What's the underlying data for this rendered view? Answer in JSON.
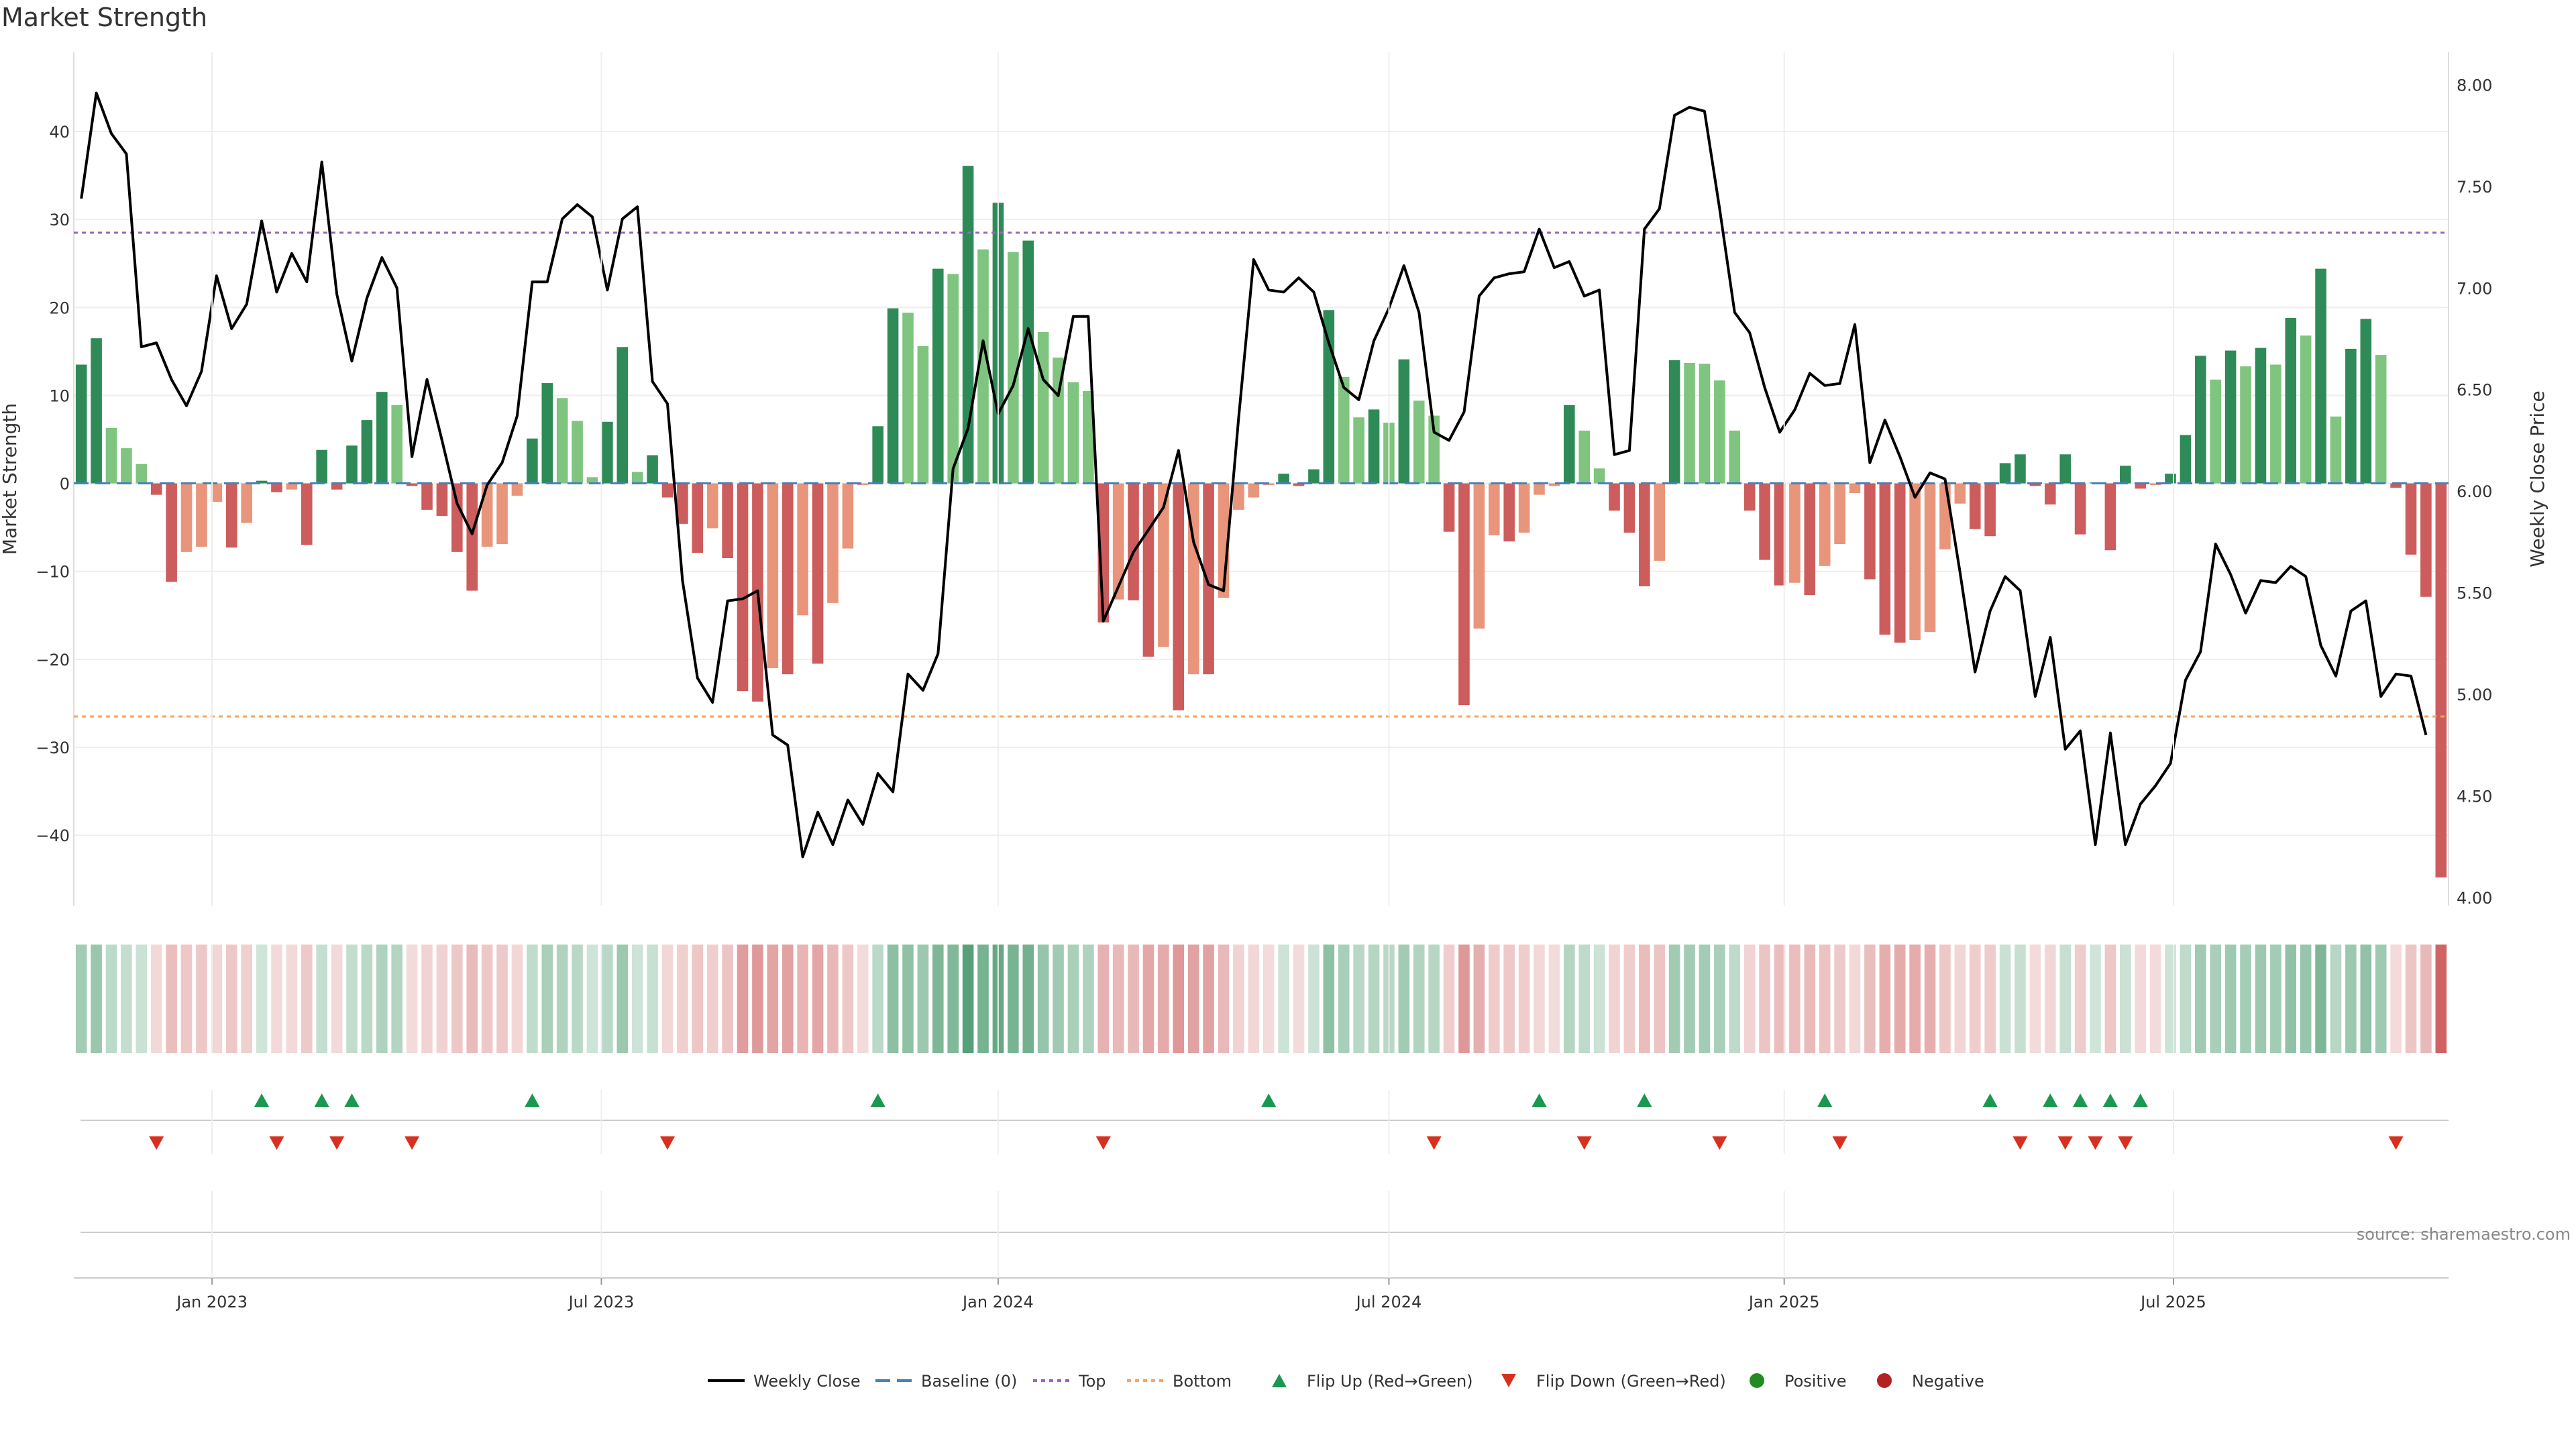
{
  "chart_data": {
    "type": "bar",
    "title": "Market Strength",
    "ylabel": "Market Strength",
    "y2label": "Weekly Close Price",
    "ylim": [
      -48,
      49
    ],
    "y2lim": [
      3.96,
      8.16
    ],
    "yticks": [
      40,
      30,
      20,
      10,
      0,
      -10,
      -20,
      -30,
      -40
    ],
    "y2ticks": [
      "8.00",
      "7.50",
      "7.00",
      "6.50",
      "6.00",
      "5.50",
      "5.00",
      "4.50",
      "4.00"
    ],
    "xticks": [
      {
        "label": "Jan 2023",
        "x": 8.7
      },
      {
        "label": "Jul 2023",
        "x": 34.6
      },
      {
        "label": "Jan 2024",
        "x": 61.0
      },
      {
        "label": "Jul 2024",
        "x": 87.0
      },
      {
        "label": "Jan 2025",
        "x": 113.3
      },
      {
        "label": "Jul 2025",
        "x": 139.2
      }
    ],
    "top_line": 28.5,
    "bottom_line": -26.5,
    "strength": [
      13.5,
      16.5,
      6.3,
      4.0,
      2.2,
      -1.3,
      -11.2,
      -7.8,
      -7.2,
      -2.1,
      -7.3,
      -4.5,
      0.3,
      -1.0,
      -0.7,
      -7.0,
      3.8,
      -0.7,
      4.3,
      7.2,
      10.4,
      8.9,
      -0.3,
      -3.0,
      -3.7,
      -7.8,
      -12.2,
      -7.2,
      -6.9,
      -1.4,
      5.1,
      11.4,
      9.7,
      7.1,
      0.7,
      7.0,
      15.5,
      1.3,
      3.2,
      -1.6,
      -4.6,
      -7.9,
      -5.1,
      -8.5,
      -23.6,
      -24.8,
      -21.0,
      -21.7,
      -15.0,
      -20.5,
      -13.6,
      -7.4,
      -0.2,
      6.5,
      19.9,
      19.4,
      15.6,
      24.4,
      23.8,
      36.1,
      26.6,
      31.9,
      26.3,
      27.6,
      17.2,
      14.3,
      11.5,
      10.5,
      -15.8,
      -13.2,
      -13.3,
      -19.7,
      -18.6,
      -25.8,
      -21.7,
      -21.7,
      -13.0,
      -3.0,
      -1.6,
      -0.2,
      1.1,
      -0.3,
      1.6,
      19.7,
      12.1,
      7.5,
      8.4,
      6.9,
      14.1,
      9.4,
      7.7,
      -5.5,
      -25.2,
      -16.5,
      -5.9,
      -6.6,
      -5.6,
      -1.3,
      -0.3,
      8.9,
      6.0,
      1.7,
      -3.1,
      -5.6,
      -11.7,
      -8.8,
      14.0,
      13.7,
      13.6,
      11.7,
      6.0,
      -3.1,
      -8.7,
      -11.6,
      -11.3,
      -12.7,
      -9.4,
      -6.9,
      -1.1,
      -10.9,
      -17.2,
      -18.1,
      -17.8,
      -16.9,
      -7.5,
      -2.3,
      -5.2,
      -6.0,
      2.3,
      3.3,
      -0.3,
      -2.4,
      3.3,
      -5.8,
      0.1,
      -7.6,
      2.0,
      -0.6,
      -0.2,
      1.1,
      5.5,
      14.5,
      11.8,
      15.1,
      13.3,
      15.4,
      13.5,
      18.8,
      16.8,
      24.4,
      7.6,
      15.3,
      18.7,
      14.6,
      -0.5,
      -8.1,
      -12.9,
      -44.8
    ],
    "close": [
      7.44,
      7.96,
      7.76,
      7.66,
      6.71,
      6.73,
      6.55,
      6.42,
      6.59,
      7.06,
      6.8,
      6.92,
      7.33,
      6.98,
      7.17,
      7.03,
      7.62,
      6.97,
      6.64,
      6.95,
      7.15,
      7.0,
      6.17,
      6.55,
      6.25,
      5.94,
      5.79,
      6.03,
      6.14,
      6.37,
      7.03,
      7.03,
      7.34,
      7.41,
      7.35,
      6.99,
      7.34,
      7.4,
      6.54,
      6.43,
      5.56,
      5.08,
      4.96,
      5.46,
      5.47,
      5.51,
      4.8,
      4.75,
      4.2,
      4.42,
      4.26,
      4.48,
      4.36,
      4.61,
      4.52,
      5.1,
      5.02,
      5.2,
      6.11,
      6.31,
      6.74,
      6.38,
      6.52,
      6.8,
      6.55,
      6.47,
      6.86,
      6.86,
      5.36,
      5.53,
      5.7,
      5.81,
      5.92,
      6.2,
      5.75,
      5.54,
      5.51,
      6.36,
      7.14,
      6.99,
      6.98,
      7.05,
      6.98,
      6.73,
      6.51,
      6.45,
      6.74,
      6.9,
      7.11,
      6.88,
      6.29,
      6.25,
      6.39,
      6.96,
      7.05,
      7.07,
      7.08,
      7.29,
      7.1,
      7.13,
      6.96,
      6.99,
      6.18,
      6.2,
      7.29,
      7.39,
      7.85,
      7.89,
      7.87,
      7.39,
      6.88,
      6.78,
      6.51,
      6.29,
      6.4,
      6.58,
      6.52,
      6.53,
      6.82,
      6.14,
      6.35,
      6.17,
      5.97,
      6.09,
      6.06,
      5.6,
      5.11,
      5.41,
      5.58,
      5.51,
      4.99,
      5.28,
      4.73,
      4.82,
      4.26,
      4.81,
      4.26,
      4.46,
      4.55,
      4.66,
      5.07,
      5.21,
      5.74,
      5.59,
      5.4,
      5.56,
      5.55,
      5.63,
      5.58,
      5.24,
      5.09,
      5.41,
      5.46,
      4.99,
      5.1,
      5.09,
      4.8
    ],
    "flip_up": [
      12,
      16,
      18,
      30,
      53,
      79,
      97,
      104,
      116,
      127,
      131,
      133,
      135,
      137
    ],
    "flip_down": [
      5,
      13,
      17,
      22,
      39,
      68,
      90,
      100,
      109,
      117,
      129,
      132,
      134,
      136,
      154
    ],
    "legend": [
      "Weekly Close",
      "Baseline (0)",
      "Top",
      "Bottom",
      "Flip Up (Red→Green)",
      "Flip Down (Green→Red)",
      "Positive",
      "Negative"
    ],
    "source": "source: sharemaestro.com",
    "colors": {
      "strong_positive": "#2e8b57",
      "positive": "#7fc47f",
      "negative": "#e8957b",
      "strong_negative": "#cd5c5c",
      "close_line": "#000000",
      "baseline": "#4682b4",
      "top_line": "#9467bd",
      "bottom_line": "#f4a460",
      "flip_up": "#1a9850",
      "flip_down": "#d7301f",
      "positive_dot": "#228b22",
      "negative_dot": "#b22222"
    }
  }
}
